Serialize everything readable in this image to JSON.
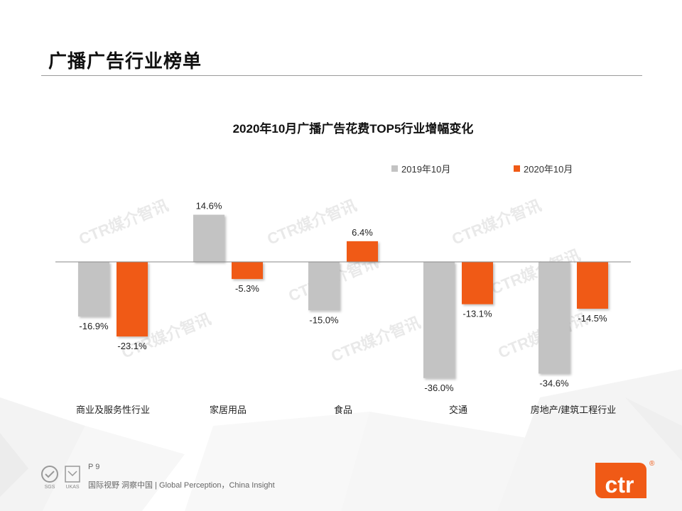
{
  "header": {
    "title": "广播广告行业榜单"
  },
  "watermark": {
    "text": "CTR媒介智讯"
  },
  "chart_data": {
    "type": "bar",
    "title": "2020年10月广播广告花费TOP5行业增幅变化",
    "categories": [
      "商业及服务性行业",
      "家居用品",
      "食品",
      "交通",
      "房地产/建筑工程行业"
    ],
    "series": [
      {
        "name": "2019年10月",
        "color": "#c3c3c3",
        "values": [
          -16.9,
          14.6,
          -15.0,
          -36.0,
          -34.6
        ]
      },
      {
        "name": "2020年10月",
        "color": "#f05a16",
        "values": [
          -23.1,
          -5.3,
          6.4,
          -13.1,
          -14.5
        ]
      }
    ],
    "value_labels": [
      [
        "-16.9%",
        "14.6%",
        "-15.0%",
        "-36.0%",
        "-34.6%"
      ],
      [
        "-23.1%",
        "-5.3%",
        "6.4%",
        "-13.1%",
        "-14.5%"
      ]
    ],
    "ylim": [
      -40,
      16
    ],
    "grid": false,
    "legend_position": "top-right"
  },
  "footer": {
    "page": "P 9",
    "tagline": "国际视野  洞察中国 |  Global Perception，China Insight",
    "brand": "ctr",
    "registered": "®",
    "badge1": "SGS",
    "badge2": "UKAS"
  },
  "colors": {
    "accent": "#f05a16",
    "gray_bar": "#c3c3c3"
  }
}
